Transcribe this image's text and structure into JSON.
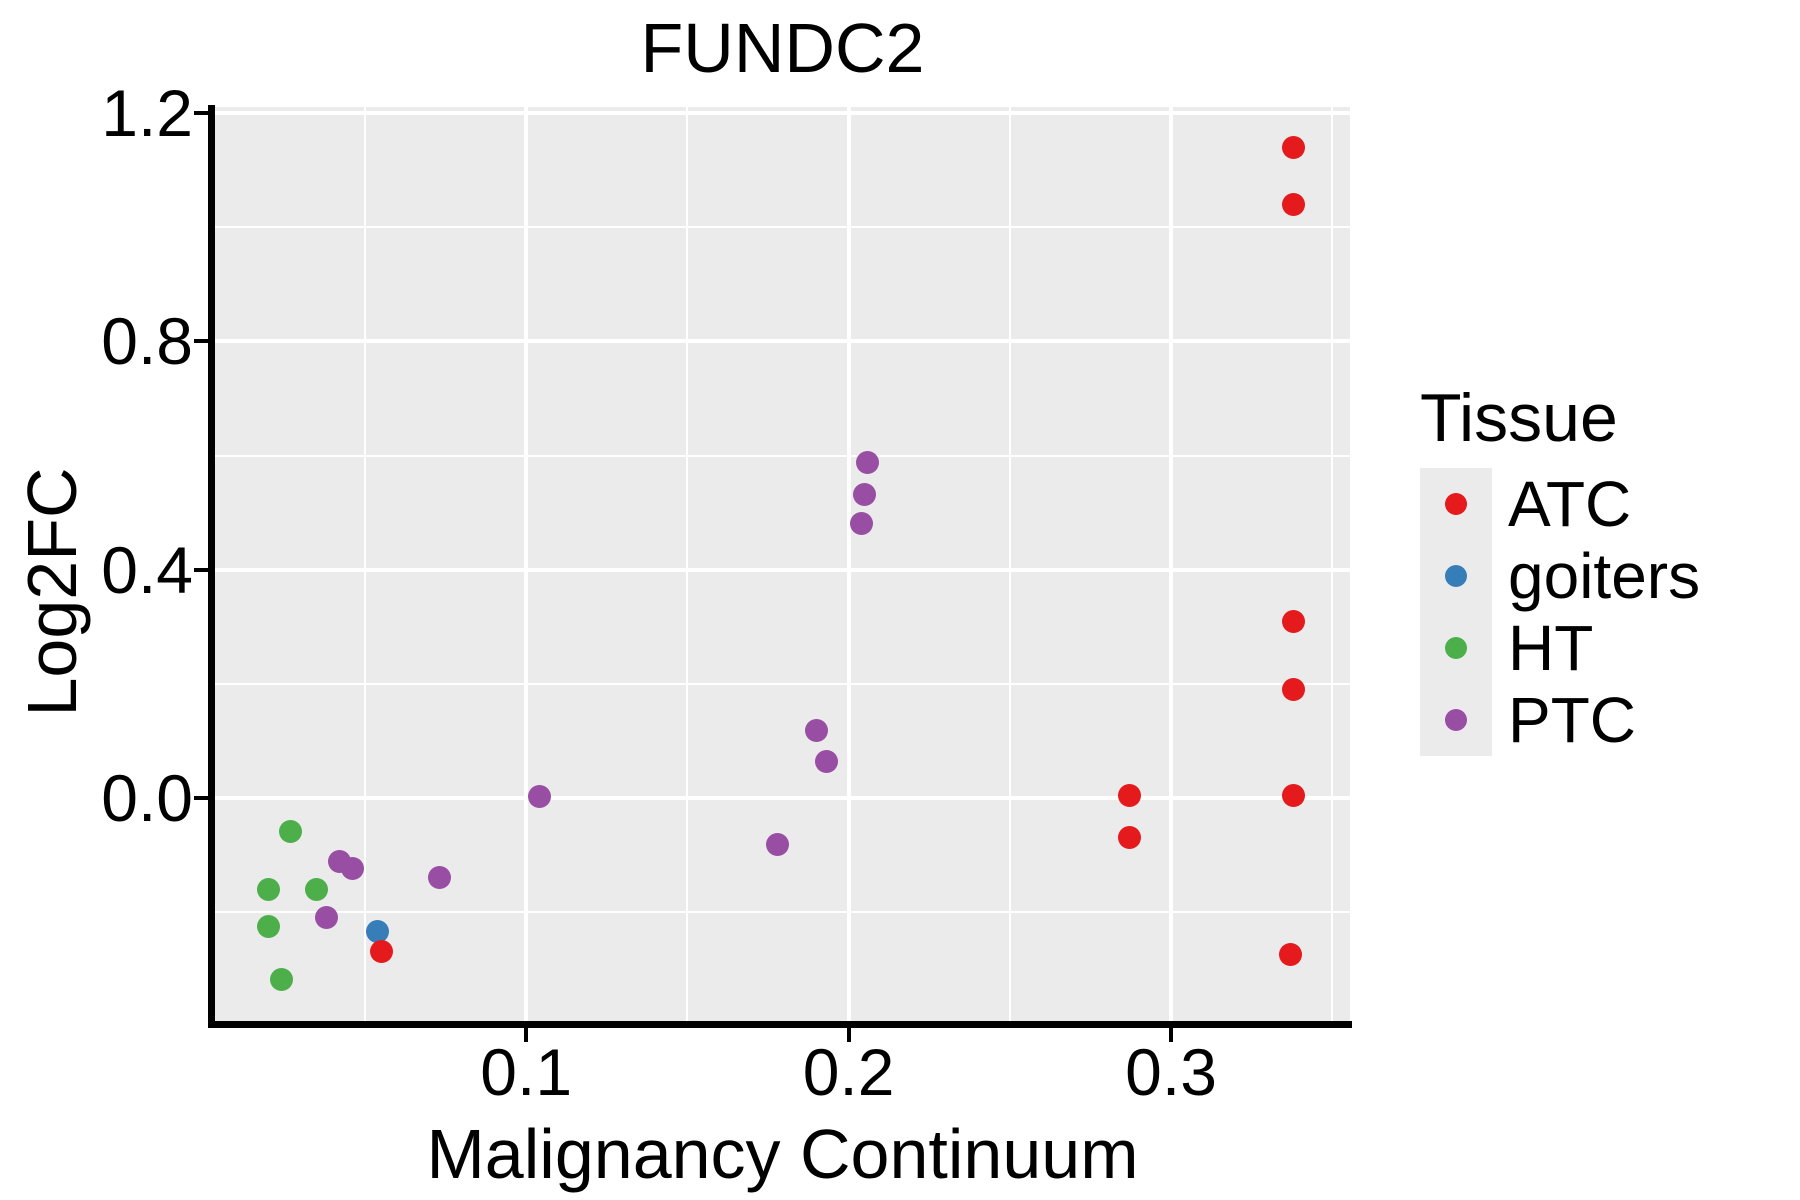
{
  "title": "FUNDC2",
  "axes": {
    "x": {
      "label": "Malignancy Continuum",
      "tick_labels": [
        "0.1",
        "0.2",
        "0.3"
      ],
      "major_ticks": [
        0.1,
        0.2,
        0.3
      ],
      "minor_ticks": [
        0.05,
        0.15,
        0.25,
        0.35
      ],
      "range": [
        0.0035,
        0.3555
      ]
    },
    "y": {
      "label": "Log2FC",
      "tick_labels": [
        "0.0",
        "0.4",
        "0.8",
        "1.2"
      ],
      "major_ticks": [
        0.0,
        0.4,
        0.8,
        1.2
      ],
      "minor_ticks": [
        -0.2,
        0.2,
        0.6,
        1.0
      ],
      "range": [
        -0.391,
        1.211
      ]
    }
  },
  "legend": {
    "title": "Tissue",
    "items": [
      {
        "label": "ATC",
        "color": "#E41A1C"
      },
      {
        "label": "goiters",
        "color": "#377EB8"
      },
      {
        "label": "HT",
        "color": "#4DAF4A"
      },
      {
        "label": "PTC",
        "color": "#984EA3"
      }
    ]
  },
  "colors": {
    "panel_background": "#EBEBEB",
    "gridline": "#FFFFFF",
    "axis": "#000000",
    "legend_key_background": "#EBEBEB"
  },
  "chart_data": {
    "type": "scatter",
    "title": "FUNDC2",
    "xlabel": "Malignancy Continuum",
    "ylabel": "Log2FC",
    "xlim": [
      0.0035,
      0.3555
    ],
    "ylim": [
      -0.391,
      1.211
    ],
    "grid": true,
    "legend_position": "right",
    "draw_order": [
      "HT",
      "PTC",
      "goiters",
      "ATC"
    ],
    "series": [
      {
        "name": "ATC",
        "color": "#E41A1C",
        "points": [
          [
            0.338,
            1.14
          ],
          [
            0.338,
            1.04
          ],
          [
            0.338,
            0.31
          ],
          [
            0.338,
            0.19
          ],
          [
            0.338,
            0.005
          ],
          [
            0.337,
            -0.275
          ],
          [
            0.287,
            0.005
          ],
          [
            0.287,
            -0.07
          ],
          [
            0.055,
            -0.27
          ]
        ]
      },
      {
        "name": "goiters",
        "color": "#377EB8",
        "points": [
          [
            0.054,
            -0.235
          ]
        ]
      },
      {
        "name": "HT",
        "color": "#4DAF4A",
        "points": [
          [
            0.027,
            -0.058
          ],
          [
            0.02,
            -0.16
          ],
          [
            0.035,
            -0.16
          ],
          [
            0.02,
            -0.226
          ],
          [
            0.024,
            -0.319
          ]
        ]
      },
      {
        "name": "PTC",
        "color": "#984EA3",
        "points": [
          [
            0.042,
            -0.112
          ],
          [
            0.046,
            -0.123
          ],
          [
            0.038,
            -0.21
          ],
          [
            0.073,
            -0.14
          ],
          [
            0.104,
            0.002
          ],
          [
            0.178,
            -0.082
          ],
          [
            0.19,
            0.118
          ],
          [
            0.193,
            0.063
          ],
          [
            0.204,
            0.481
          ],
          [
            0.205,
            0.532
          ],
          [
            0.206,
            0.588
          ]
        ]
      }
    ]
  }
}
